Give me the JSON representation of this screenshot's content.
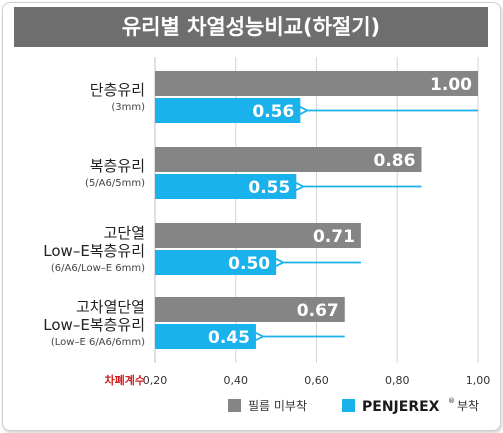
{
  "chart_data": {
    "type": "bar",
    "title": "유리별 차열성능비교(하절기)",
    "categories": [
      {
        "name": "단층유리",
        "lines": [
          "단층유리"
        ],
        "sub": "(3mm)"
      },
      {
        "name": "복층유리",
        "lines": [
          "복층유리"
        ],
        "sub": "(5/A6/5mm)"
      },
      {
        "name": "고단열 Low–E복층유리",
        "lines": [
          "고단열",
          "Low–E복층유리"
        ],
        "sub": "(6/A6/Low–E 6mm)"
      },
      {
        "name": "고차열단열 Low–E복층유리",
        "lines": [
          "고차열단열",
          "Low–E복층유리"
        ],
        "sub": "(Low–E 6/A6/6mm)"
      }
    ],
    "series": [
      {
        "name": "필름 미부착",
        "color": "#858585",
        "values": [
          1.0,
          0.86,
          0.71,
          0.67
        ],
        "labels": [
          "1.00",
          "0.86",
          "0.71",
          "0.67"
        ]
      },
      {
        "name": "PENJEREX® 부착",
        "color": "#1ab2ec",
        "values": [
          0.56,
          0.55,
          0.5,
          0.45
        ],
        "labels": [
          "0.56",
          "0.55",
          "0.50",
          "0.45"
        ]
      }
    ],
    "xlabel": "차폐계수",
    "xlim": [
      0.2,
      1.0
    ],
    "xticks": [
      "0,20",
      "0,40",
      "0,60",
      "0,80",
      "1,00"
    ],
    "grid": true,
    "legend": {
      "position": "bottom-right",
      "items": [
        {
          "label": "필름 미부착",
          "color": "#858585"
        },
        {
          "brand": "PENJEREX",
          "mark": "®",
          "label": "부착",
          "color": "#1ab2ec"
        }
      ]
    },
    "arrows": true,
    "colors": {
      "title_bg": "#6e6e6e",
      "arrow": "#1ab2ec",
      "axis_label": "#d02020"
    }
  }
}
